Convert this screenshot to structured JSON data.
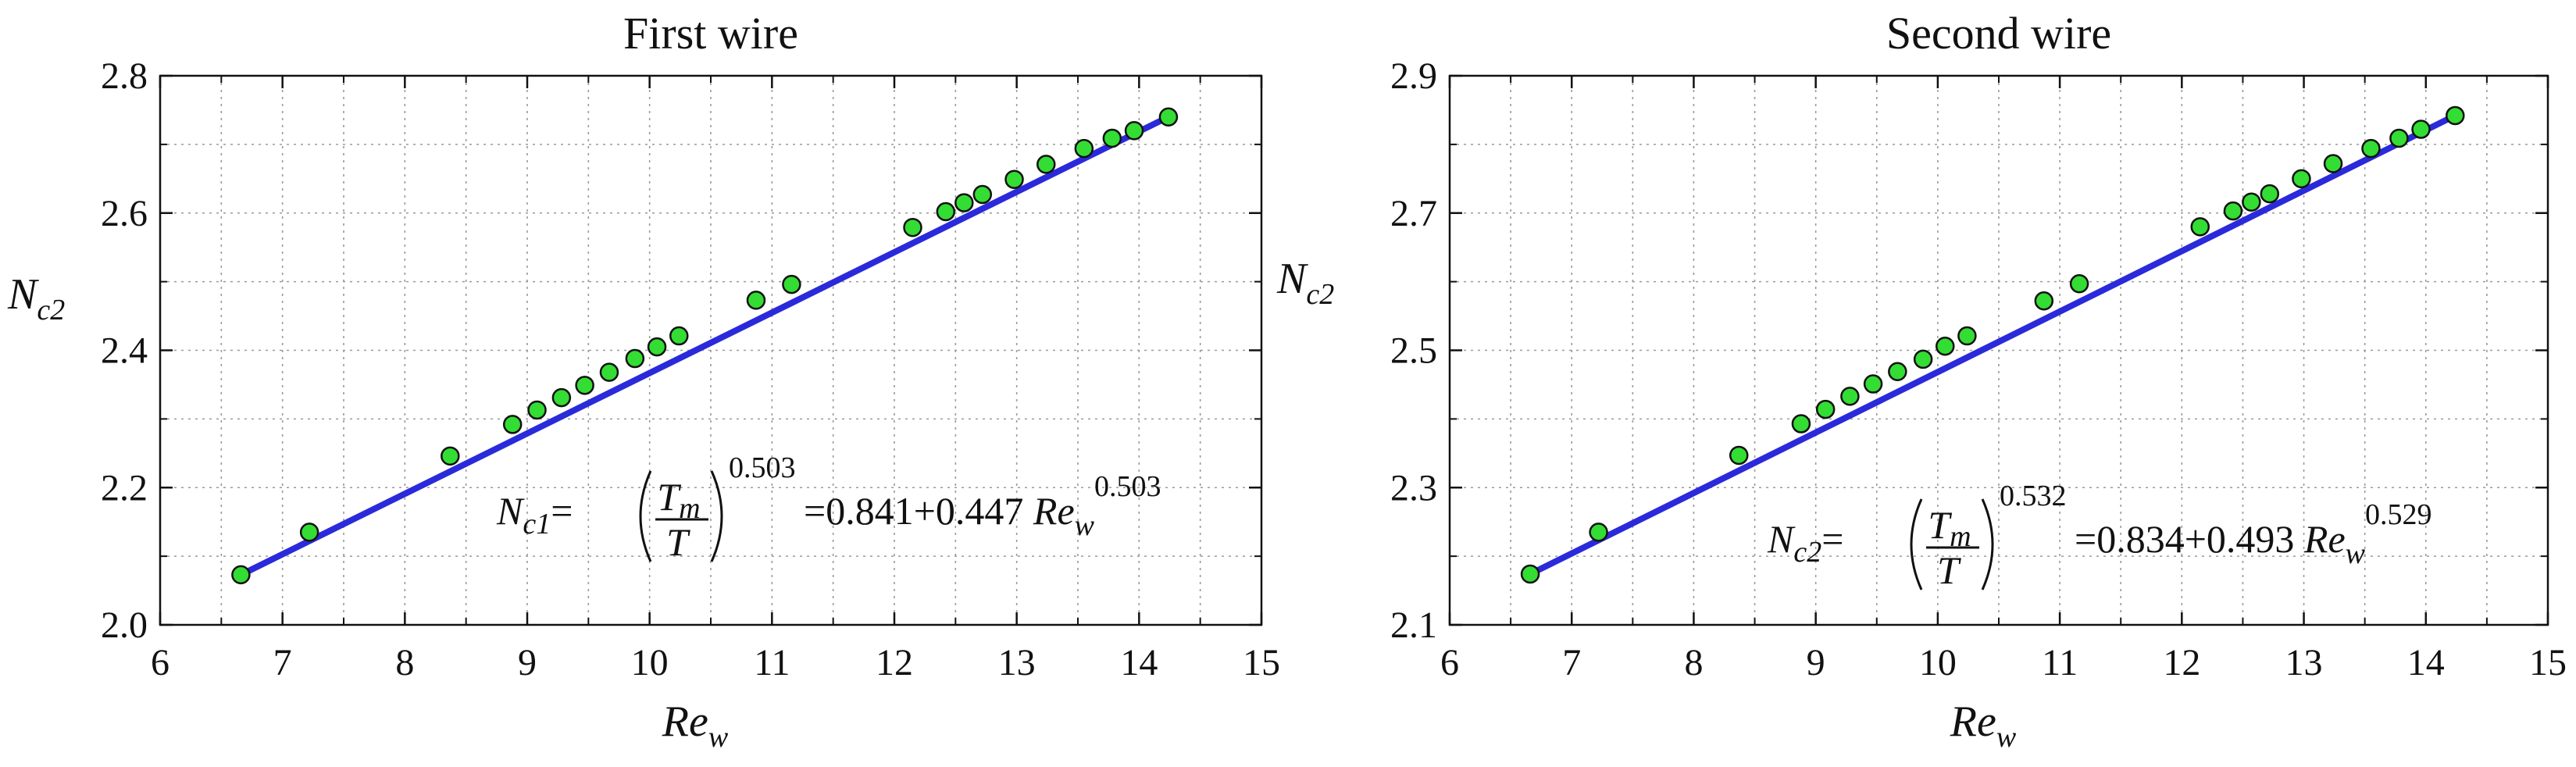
{
  "chart_data": [
    {
      "type": "scatter",
      "title": "First wire",
      "xlabel": "Re",
      "xlabel_sub": "w",
      "ylabel": "N",
      "ylabel_sub": "c2",
      "xlim": [
        6,
        15
      ],
      "ylim": [
        2.0,
        2.8
      ],
      "xticks": [
        "6",
        "7",
        "8",
        "9",
        "10",
        "11",
        "12",
        "13",
        "14",
        "15"
      ],
      "yticks": [
        "2.0",
        "2.2",
        "2.4",
        "2.6",
        "2.8"
      ],
      "grid": true,
      "equation": {
        "lhs": "N",
        "lhs_sub": "c1",
        "eq": "=",
        "frac_num": "T",
        "frac_num_sub": "m",
        "frac_den": "T",
        "exp1": "0.503",
        "rhs": "=0.841+0.447",
        "rhs_var": "Re",
        "rhs_var_sub": "w",
        "exp2": "0.503"
      },
      "series": [
        {
          "style": "line",
          "color": "#2a2adb",
          "x": [
            6.66,
            14.24
          ],
          "y": [
            2.073,
            2.74
          ]
        },
        {
          "style": "markers",
          "color": "#33dd33",
          "x": [
            6.66,
            7.22,
            8.37,
            8.88,
            9.08,
            9.28,
            9.47,
            9.67,
            9.88,
            10.06,
            10.24,
            10.87,
            11.16,
            12.15,
            12.42,
            12.57,
            12.72,
            12.98,
            13.24,
            13.55,
            13.78,
            13.96,
            14.24
          ],
          "y": [
            2.073,
            2.135,
            2.246,
            2.292,
            2.313,
            2.331,
            2.349,
            2.368,
            2.388,
            2.405,
            2.421,
            2.473,
            2.496,
            2.579,
            2.602,
            2.615,
            2.627,
            2.649,
            2.671,
            2.694,
            2.709,
            2.72,
            2.74
          ]
        }
      ]
    },
    {
      "type": "scatter",
      "title": "Second wire",
      "xlabel": "Re",
      "xlabel_sub": "w",
      "ylabel": "N",
      "ylabel_sub": "c2",
      "xlim": [
        6,
        15
      ],
      "ylim": [
        2.1,
        2.9
      ],
      "xticks": [
        "6",
        "7",
        "8",
        "9",
        "10",
        "11",
        "12",
        "13",
        "14",
        "15"
      ],
      "yticks": [
        "2.1",
        "2.3",
        "2.5",
        "2.7",
        "2.9"
      ],
      "grid": true,
      "equation": {
        "lhs": "N",
        "lhs_sub": "c2",
        "eq": "=",
        "frac_num": "T",
        "frac_num_sub": "m",
        "frac_den": "T",
        "exp1": "0.532",
        "rhs": "=0.834+0.493",
        "rhs_var": "Re",
        "rhs_var_sub": "w",
        "exp2": "0.529"
      },
      "series": [
        {
          "style": "line",
          "color": "#2a2adb",
          "x": [
            6.66,
            14.24
          ],
          "y": [
            2.174,
            2.842
          ]
        },
        {
          "style": "markers",
          "color": "#33dd33",
          "x": [
            6.66,
            7.22,
            8.37,
            8.88,
            9.08,
            9.28,
            9.47,
            9.67,
            9.88,
            10.06,
            10.24,
            10.87,
            11.16,
            12.15,
            12.42,
            12.57,
            12.72,
            12.98,
            13.24,
            13.55,
            13.78,
            13.96,
            14.24
          ],
          "y": [
            2.174,
            2.235,
            2.347,
            2.393,
            2.414,
            2.433,
            2.451,
            2.469,
            2.487,
            2.506,
            2.521,
            2.572,
            2.597,
            2.68,
            2.703,
            2.716,
            2.728,
            2.75,
            2.772,
            2.794,
            2.809,
            2.822,
            2.842
          ]
        }
      ]
    }
  ]
}
